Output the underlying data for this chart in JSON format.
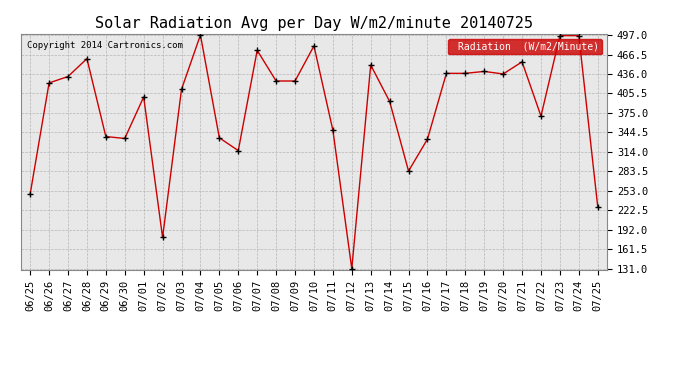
{
  "title": "Solar Radiation Avg per Day W/m2/minute 20140725",
  "copyright": "Copyright 2014 Cartronics.com",
  "legend_label": "Radiation  (W/m2/Minute)",
  "dates": [
    "06/25",
    "06/26",
    "06/27",
    "06/28",
    "06/29",
    "06/30",
    "07/01",
    "07/02",
    "07/03",
    "07/04",
    "07/05",
    "07/06",
    "07/07",
    "07/08",
    "07/09",
    "07/10",
    "07/11",
    "07/12",
    "07/13",
    "07/14",
    "07/15",
    "07/16",
    "07/17",
    "07/18",
    "07/19",
    "07/20",
    "07/21",
    "07/22",
    "07/23",
    "07/24",
    "07/25"
  ],
  "values": [
    248,
    422,
    432,
    460,
    338,
    335,
    400,
    180,
    412,
    497,
    336,
    316,
    473,
    425,
    425,
    480,
    348,
    131,
    450,
    393,
    284,
    334,
    437,
    437,
    440,
    436,
    455,
    370,
    496,
    496,
    228
  ],
  "line_color": "#cc0000",
  "marker_color": "#000000",
  "background_color": "#ffffff",
  "plot_background": "#e8e8e8",
  "grid_color": "#aaaaaa",
  "ylim_min": 131.0,
  "ylim_max": 497.0,
  "yticks": [
    131.0,
    161.5,
    192.0,
    222.5,
    253.0,
    283.5,
    314.0,
    344.5,
    375.0,
    405.5,
    436.0,
    466.5,
    497.0
  ],
  "title_fontsize": 11,
  "tick_fontsize": 7.5,
  "copyright_fontsize": 6.5,
  "legend_bg": "#cc0000",
  "legend_text_color": "#ffffff",
  "legend_fontsize": 7
}
